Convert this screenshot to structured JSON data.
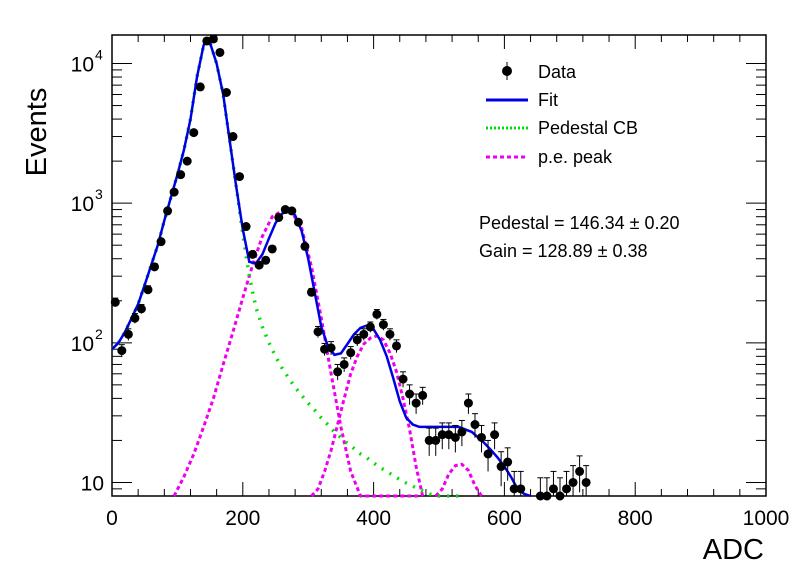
{
  "chart_data": {
    "type": "scatter",
    "xlabel": "ADC",
    "ylabel": "Events",
    "xlim": [
      0,
      1000
    ],
    "ylim": [
      8,
      16000
    ],
    "yscale": "log",
    "x_ticks": [
      "0",
      "200",
      "400",
      "600",
      "800",
      "1000"
    ],
    "y_ticks": [
      {
        "value": 10,
        "label": "10",
        "exp": ""
      },
      {
        "value": 100,
        "label": "10",
        "exp": "2"
      },
      {
        "value": 1000,
        "label": "10",
        "exp": "3"
      },
      {
        "value": 10000,
        "label": "10",
        "exp": "4"
      }
    ],
    "legend_position": "top-right",
    "legend": [
      {
        "label": "Data",
        "style": "marker",
        "color": "#000000"
      },
      {
        "label": "Fit",
        "style": "solid",
        "color": "#0000e6"
      },
      {
        "label": "Pedestal CB",
        "style": "dotted",
        "color": "#00dd00"
      },
      {
        "label": "p.e. peak",
        "style": "dashed",
        "color": "#ee00ee"
      }
    ],
    "annotations": [
      {
        "key": "pedestal",
        "text": "Pedestal = 146.34 ± 0.20"
      },
      {
        "key": "gain",
        "text": "Gain = 128.89 ± 0.38"
      }
    ],
    "data": {
      "x": [
        5,
        15,
        25,
        35,
        45,
        55,
        65,
        75,
        85,
        95,
        105,
        115,
        125,
        135,
        145,
        155,
        165,
        175,
        185,
        195,
        205,
        215,
        225,
        235,
        245,
        255,
        265,
        275,
        285,
        295,
        305,
        315,
        325,
        335,
        345,
        355,
        365,
        375,
        385,
        395,
        405,
        415,
        425,
        435,
        445,
        455,
        465,
        475,
        485,
        495,
        505,
        515,
        525,
        535,
        545,
        555,
        565,
        575,
        585,
        595,
        605,
        615,
        625,
        655,
        665,
        675,
        685,
        695,
        705,
        715,
        725
      ],
      "y": [
        195,
        88,
        115,
        150,
        175,
        240,
        350,
        530,
        880,
        1200,
        1600,
        2000,
        3200,
        6800,
        14500,
        15000,
        12000,
        6200,
        3000,
        1550,
        680,
        430,
        360,
        390,
        470,
        790,
        900,
        880,
        730,
        490,
        230,
        120,
        90,
        92,
        62,
        70,
        85,
        105,
        115,
        130,
        160,
        135,
        115,
        95,
        55,
        43,
        37,
        42,
        20,
        20,
        22,
        22,
        21,
        23,
        37,
        26,
        21,
        16,
        22,
        13,
        14,
        9,
        9,
        8,
        8,
        9,
        8,
        9,
        10,
        12,
        10
      ],
      "yerr": [
        14,
        9,
        11,
        12,
        13,
        16,
        19,
        23,
        30,
        35,
        40,
        45,
        57,
        82,
        120,
        122,
        110,
        79,
        55,
        39,
        26,
        21,
        19,
        20,
        22,
        28,
        30,
        30,
        27,
        22,
        15,
        11,
        9,
        10,
        8,
        8,
        9,
        10,
        11,
        11,
        13,
        12,
        11,
        10,
        7,
        7,
        6,
        6,
        4.5,
        4.5,
        4.7,
        4.7,
        4.6,
        4.8,
        6,
        5.1,
        4.6,
        4,
        4.7,
        3.6,
        3.7,
        3,
        3,
        2.8,
        2.8,
        3,
        2.8,
        3,
        3.2,
        3.5,
        3.2
      ]
    },
    "fit": {
      "x": [
        0,
        10,
        20,
        30,
        40,
        50,
        60,
        70,
        80,
        90,
        100,
        110,
        120,
        130,
        140,
        145,
        150,
        160,
        170,
        180,
        190,
        200,
        210,
        220,
        230,
        240,
        250,
        260,
        270,
        280,
        290,
        300,
        310,
        320,
        330,
        340,
        350,
        360,
        370,
        380,
        390,
        400,
        410,
        420,
        430,
        440,
        450,
        460,
        470,
        480,
        490,
        500,
        510,
        520,
        530,
        540,
        550,
        560,
        570,
        580,
        590,
        600,
        610,
        620,
        630,
        640
      ],
      "y": [
        90,
        100,
        120,
        150,
        190,
        260,
        360,
        500,
        750,
        1100,
        1600,
        2400,
        4000,
        8000,
        13500,
        15000,
        14000,
        10000,
        6000,
        2800,
        1300,
        650,
        380,
        370,
        430,
        560,
        720,
        840,
        880,
        820,
        630,
        400,
        230,
        130,
        95,
        82,
        84,
        98,
        115,
        128,
        133,
        125,
        105,
        80,
        56,
        38,
        29,
        26,
        25,
        25,
        25,
        25,
        25,
        25,
        25,
        24,
        23,
        21,
        19,
        17,
        15,
        13,
        11,
        9,
        8.3,
        7.9
      ]
    },
    "pedestal_cb": {
      "x": [
        0,
        10,
        20,
        30,
        40,
        50,
        60,
        70,
        80,
        90,
        100,
        110,
        120,
        130,
        140,
        145,
        150,
        160,
        170,
        180,
        190,
        200,
        210,
        220,
        230,
        240,
        250,
        260,
        270,
        280,
        290,
        300,
        310,
        320,
        330,
        340,
        350,
        360,
        370,
        380,
        390,
        400,
        410,
        420,
        430,
        440,
        450,
        460,
        470,
        480,
        490,
        500,
        510,
        520,
        530
      ],
      "y": [
        90,
        100,
        120,
        150,
        190,
        260,
        360,
        500,
        750,
        1100,
        1600,
        2400,
        4000,
        8000,
        13500,
        15000,
        14000,
        10000,
        6000,
        2800,
        1300,
        600,
        300,
        180,
        130,
        100,
        80,
        66,
        56,
        48,
        42,
        37,
        33,
        29,
        26,
        23,
        21,
        19,
        17.5,
        16,
        15,
        13.8,
        12.8,
        12,
        11.2,
        10.5,
        9.9,
        9.4,
        8.9,
        8.5,
        8.1,
        7.8,
        7.5,
        7.2,
        7
      ]
    },
    "pe_peak_1": {
      "x": [
        95,
        110,
        125,
        140,
        155,
        170,
        185,
        200,
        215,
        230,
        245,
        260,
        275,
        290,
        305,
        320,
        335,
        350,
        365,
        380,
        395,
        410,
        425,
        440,
        455,
        470
      ],
      "y": [
        7.8,
        11,
        16,
        25,
        40,
        70,
        120,
        210,
        360,
        580,
        800,
        880,
        860,
        660,
        350,
        150,
        60,
        25,
        12,
        7.8,
        7.8,
        7.8,
        7.8,
        7.8,
        7.8,
        7.8
      ]
    },
    "pe_peak_2": {
      "x": [
        305,
        315,
        325,
        335,
        345,
        355,
        365,
        375,
        385,
        395,
        405,
        415,
        425,
        435,
        445,
        455,
        465,
        475
      ],
      "y": [
        7.8,
        9,
        12,
        17,
        26,
        40,
        60,
        80,
        98,
        108,
        112,
        105,
        85,
        62,
        40,
        24,
        13,
        7.8
      ]
    },
    "pe_peak_3": {
      "x": [
        495,
        505,
        515,
        525,
        535,
        545,
        555,
        565
      ],
      "y": [
        7.8,
        9,
        11.5,
        13.2,
        13.5,
        12.2,
        9.5,
        7.8
      ]
    }
  }
}
